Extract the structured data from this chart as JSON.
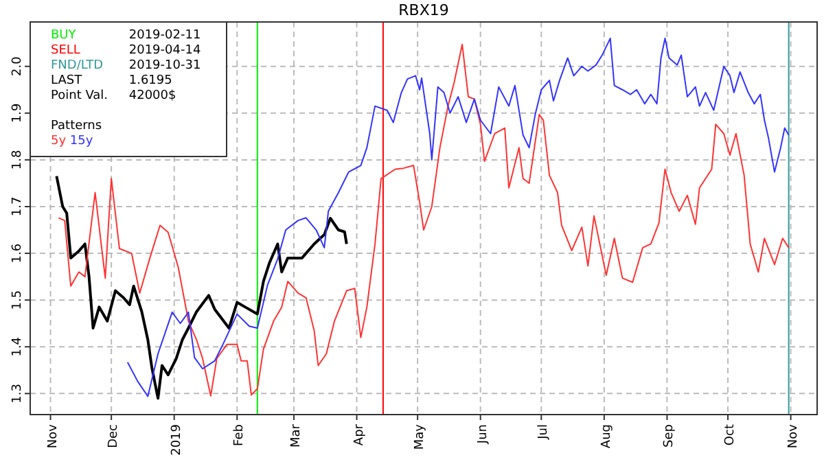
{
  "chart_data": {
    "type": "line",
    "title": "RBX19",
    "legend_title": "Patterns",
    "legend": "top left",
    "grid": true,
    "line_style": "solid",
    "annotations": [
      "BUY 2019-02-11",
      "SELL 2019-04-14",
      "FND/LTD 2019-10-31",
      "LAST 1.6195",
      "Point Val. 42000$"
    ],
    "xlim": [
      "2018-10-22",
      "2019-11-14"
    ],
    "ylim": [
      1.255,
      2.095
    ],
    "xticks": [
      {
        "value": "2018-11-01",
        "label": "Nov"
      },
      {
        "value": "2018-12-01",
        "label": "Dec"
      },
      {
        "value": "2019-01-01",
        "label": "2019"
      },
      {
        "value": "2019-02-01",
        "label": "Feb"
      },
      {
        "value": "2019-03-01",
        "label": "Mar"
      },
      {
        "value": "2019-04-01",
        "label": "Apr"
      },
      {
        "value": "2019-05-01",
        "label": "May"
      },
      {
        "value": "2019-06-01",
        "label": "Jun"
      },
      {
        "value": "2019-07-01",
        "label": "Jul"
      },
      {
        "value": "2019-08-01",
        "label": "Aug"
      },
      {
        "value": "2019-09-01",
        "label": "Sep"
      },
      {
        "value": "2019-10-01",
        "label": "Oct"
      },
      {
        "value": "2019-11-01",
        "label": "Nov"
      }
    ],
    "yticks": [
      1.3,
      1.4,
      1.5,
      1.6,
      1.7,
      1.8,
      1.9,
      {
        "value": 2,
        "label": "2.0"
      }
    ],
    "ref_lines": [
      {
        "axis": "x",
        "value": "2019-02-11",
        "color": "#00ee00"
      },
      {
        "axis": "x",
        "value": "2019-04-14",
        "color": "#ff0000"
      },
      {
        "axis": "x",
        "value": "2019-10-31",
        "color": "#339999"
      }
    ],
    "series": [
      {
        "color": "#000000",
        "x": [
          "2018-11-04",
          "2018-11-07",
          "2018-11-09",
          "2018-11-11",
          "2018-11-15",
          "2018-11-18",
          "2018-11-20",
          "2018-11-22",
          "2018-11-25",
          "2018-11-29",
          "2018-12-03",
          "2018-12-07",
          "2018-12-10",
          "2018-12-12",
          "2018-12-16",
          "2018-12-19",
          "2018-12-21",
          "2018-12-24",
          "2018-12-26",
          "2018-12-29",
          "2019-01-02",
          "2019-01-05",
          "2019-01-08",
          "2019-01-12",
          "2019-01-18",
          "2019-01-21",
          "2019-01-28",
          "2019-02-01",
          "2019-02-05",
          "2019-02-11",
          "2019-02-14",
          "2019-02-17",
          "2019-02-21",
          "2019-02-23",
          "2019-02-26",
          "2019-03-05",
          "2019-03-11",
          "2019-03-16",
          "2019-03-19",
          "2019-03-23",
          "2019-03-26",
          "2019-03-27"
        ],
        "values": [
          1.765,
          1.7,
          1.686,
          1.59,
          1.605,
          1.62,
          1.55,
          1.44,
          1.485,
          1.455,
          1.52,
          1.505,
          1.49,
          1.53,
          1.475,
          1.415,
          1.355,
          1.29,
          1.36,
          1.34,
          1.375,
          1.415,
          1.44,
          1.475,
          1.51,
          1.48,
          1.44,
          1.495,
          1.485,
          1.47,
          1.54,
          1.58,
          1.62,
          1.56,
          1.59,
          1.59,
          1.62,
          1.64,
          1.675,
          1.65,
          1.646,
          1.62
        ]
      },
      {
        "name": "5y",
        "color": "#ff3333",
        "x": [
          "2018-11-05",
          "2018-11-08",
          "2018-11-11",
          "2018-11-15",
          "2018-11-18",
          "2018-11-23",
          "2018-11-28",
          "2018-12-01",
          "2018-12-05",
          "2018-12-11",
          "2018-12-15",
          "2018-12-20",
          "2018-12-25",
          "2018-12-29",
          "2019-01-03",
          "2019-01-08",
          "2019-01-12",
          "2019-01-15",
          "2019-01-19",
          "2019-01-22",
          "2019-01-27",
          "2019-02-01",
          "2019-02-03",
          "2019-02-06",
          "2019-02-08",
          "2019-02-11",
          "2019-02-14",
          "2019-02-19",
          "2019-02-23",
          "2019-02-26",
          "2019-03-03",
          "2019-03-07",
          "2019-03-11",
          "2019-03-13",
          "2019-03-17",
          "2019-03-21",
          "2019-03-27",
          "2019-03-31",
          "2019-04-03",
          "2019-04-06",
          "2019-04-10",
          "2019-04-13",
          "2019-04-20",
          "2019-04-24",
          "2019-04-29",
          "2019-05-02",
          "2019-05-04",
          "2019-05-08",
          "2019-05-12",
          "2019-05-16",
          "2019-05-19",
          "2019-05-23",
          "2019-05-26",
          "2019-05-29",
          "2019-06-01",
          "2019-06-03",
          "2019-06-08",
          "2019-06-13",
          "2019-06-15",
          "2019-06-20",
          "2019-06-22",
          "2019-06-25",
          "2019-06-30",
          "2019-07-02",
          "2019-07-05",
          "2019-07-09",
          "2019-07-11",
          "2019-07-16",
          "2019-07-21",
          "2019-07-24",
          "2019-07-27",
          "2019-08-02",
          "2019-08-06",
          "2019-08-10",
          "2019-08-15",
          "2019-08-20",
          "2019-08-24",
          "2019-08-28",
          "2019-08-31",
          "2019-09-03",
          "2019-09-07",
          "2019-09-11",
          "2019-09-15",
          "2019-09-17",
          "2019-09-23",
          "2019-09-25",
          "2019-09-29",
          "2019-10-02",
          "2019-10-05",
          "2019-10-09",
          "2019-10-11",
          "2019-10-12",
          "2019-10-16",
          "2019-10-19",
          "2019-10-24",
          "2019-10-28",
          "2019-10-31"
        ],
        "values": [
          1.676,
          1.67,
          1.53,
          1.56,
          1.55,
          1.73,
          1.547,
          1.76,
          1.61,
          1.6,
          1.515,
          1.59,
          1.66,
          1.645,
          1.57,
          1.455,
          1.415,
          1.375,
          1.295,
          1.375,
          1.405,
          1.405,
          1.37,
          1.37,
          1.297,
          1.31,
          1.395,
          1.455,
          1.485,
          1.54,
          1.515,
          1.505,
          1.435,
          1.36,
          1.385,
          1.455,
          1.52,
          1.525,
          1.42,
          1.485,
          1.62,
          1.76,
          1.78,
          1.782,
          1.788,
          1.71,
          1.65,
          1.7,
          1.826,
          1.915,
          1.965,
          2.047,
          1.935,
          1.93,
          1.876,
          1.797,
          1.856,
          1.868,
          1.74,
          1.826,
          1.76,
          1.75,
          1.897,
          1.885,
          1.767,
          1.73,
          1.66,
          1.606,
          1.656,
          1.573,
          1.68,
          1.553,
          1.632,
          1.547,
          1.538,
          1.612,
          1.62,
          1.665,
          1.78,
          1.73,
          1.69,
          1.724,
          1.662,
          1.74,
          1.78,
          1.876,
          1.856,
          1.81,
          1.856,
          1.767,
          1.67,
          1.62,
          1.56,
          1.632,
          1.576,
          1.632,
          1.612
        ]
      },
      {
        "name": "15y",
        "color": "#3333ff",
        "x": [
          "2018-12-09",
          "2018-12-14",
          "2018-12-19",
          "2018-12-24",
          "2018-12-31",
          "2019-01-04",
          "2019-01-08",
          "2019-01-11",
          "2019-01-15",
          "2019-01-21",
          "2019-01-25",
          "2019-02-01",
          "2019-02-07",
          "2019-02-11",
          "2019-02-16",
          "2019-02-21",
          "2019-02-25",
          "2019-03-03",
          "2019-03-07",
          "2019-03-12",
          "2019-03-16",
          "2019-03-18",
          "2019-03-23",
          "2019-03-28",
          "2019-04-03",
          "2019-04-06",
          "2019-04-10",
          "2019-04-16",
          "2019-04-19",
          "2019-04-23",
          "2019-04-26",
          "2019-04-30",
          "2019-05-02",
          "2019-05-03",
          "2019-05-07",
          "2019-05-08",
          "2019-05-11",
          "2019-05-14",
          "2019-05-17",
          "2019-05-21",
          "2019-05-25",
          "2019-05-29",
          "2019-06-01",
          "2019-06-06",
          "2019-06-10",
          "2019-06-15",
          "2019-06-18",
          "2019-06-22",
          "2019-06-25",
          "2019-06-28",
          "2019-07-01",
          "2019-07-05",
          "2019-07-07",
          "2019-07-10",
          "2019-07-14",
          "2019-07-17",
          "2019-07-21",
          "2019-07-24",
          "2019-07-28",
          "2019-07-31",
          "2019-08-04",
          "2019-08-06",
          "2019-08-10",
          "2019-08-14",
          "2019-08-17",
          "2019-08-21",
          "2019-08-24",
          "2019-08-27",
          "2019-08-29",
          "2019-08-31",
          "2019-09-02",
          "2019-09-06",
          "2019-09-08",
          "2019-09-11",
          "2019-09-15",
          "2019-09-17",
          "2019-09-20",
          "2019-09-24",
          "2019-09-29",
          "2019-10-02",
          "2019-10-04",
          "2019-10-07",
          "2019-10-11",
          "2019-10-14",
          "2019-10-17",
          "2019-10-19",
          "2019-10-21",
          "2019-10-24",
          "2019-10-27",
          "2019-10-29",
          "2019-10-31"
        ],
        "values": [
          1.367,
          1.326,
          1.294,
          1.385,
          1.474,
          1.45,
          1.474,
          1.377,
          1.353,
          1.37,
          1.405,
          1.47,
          1.444,
          1.44,
          1.532,
          1.588,
          1.65,
          1.67,
          1.676,
          1.65,
          1.612,
          1.69,
          1.73,
          1.774,
          1.788,
          1.826,
          1.915,
          1.906,
          1.88,
          1.944,
          1.973,
          1.98,
          1.95,
          1.975,
          1.856,
          1.8,
          1.956,
          1.944,
          1.9,
          1.935,
          1.88,
          1.93,
          1.885,
          1.856,
          1.956,
          1.915,
          1.959,
          1.853,
          1.826,
          1.897,
          1.95,
          1.97,
          1.926,
          1.97,
          2.018,
          1.98,
          2.0,
          1.99,
          2.003,
          2.024,
          2.06,
          1.959,
          1.95,
          1.94,
          1.95,
          1.92,
          1.94,
          1.92,
          2.018,
          2.06,
          2.018,
          2.003,
          2.024,
          1.935,
          1.956,
          1.915,
          1.944,
          1.906,
          2.0,
          1.98,
          1.944,
          1.988,
          1.944,
          1.92,
          1.94,
          1.885,
          1.847,
          1.774,
          1.826,
          1.868,
          1.853
        ]
      }
    ]
  }
}
